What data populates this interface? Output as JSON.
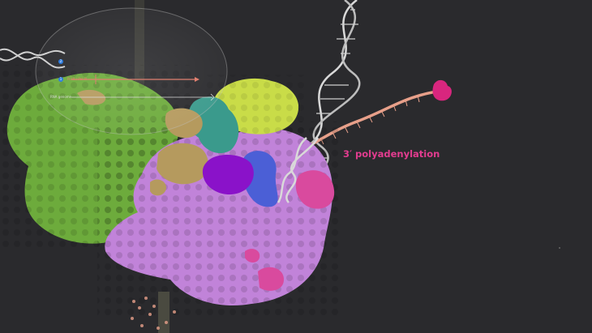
{
  "annotation": {
    "text": "3′ polyadenylation",
    "color": "#e23c8f"
  },
  "overlay": {
    "badge_1": "2",
    "badge_2": "1",
    "marker_a_text": "Pol II / Pol III",
    "marker_b_text": "RNA genome",
    "badge_color": "#2f7de0",
    "arrow_color": "#e08070"
  },
  "colors": {
    "background": "#2a2a2d",
    "green_complex": "#6dab3c",
    "lime_subunit": "#c9dc48",
    "teal_subunit": "#3a9a8c",
    "tan_subunit": "#b59a5e",
    "violet_complex": "#c183d9",
    "purple_subunit": "#8a12c9",
    "blue_subunit": "#4b5fd6",
    "magenta_subunit": "#d94a9e",
    "dna": "#d9d9d9",
    "rna": "#e8a08a",
    "rna_cap": "#d8267e"
  }
}
